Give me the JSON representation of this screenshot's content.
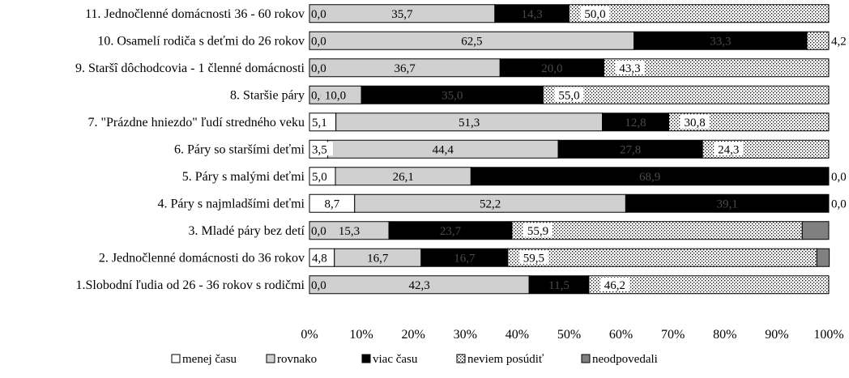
{
  "chart_data": {
    "type": "bar",
    "orientation": "horizontal",
    "stacked": "percent",
    "categories": [
      "11. Jednočlenné domácnosti 36 - 60 rokov",
      "10. Osamelí rodiča s deťmi do 26 rokov",
      "9. Staršî dôchodcovia - 1 členné domácnosti",
      "8. Staršie páry",
      "7. \"Prázdne hniezdo\" ľudí stredného veku",
      "6. Páry so staršími deťmi",
      "5. Páry s malými deťmi",
      "4.  Páry s najmladšími deťmi",
      "3. Mladé páry bez detí",
      "2. Jednočlenné domácnosti do 36 rokov",
      "1.Slobodní ľudia od 26 - 36 rokov s rodičmi"
    ],
    "series": [
      {
        "name": "menej času",
        "color": "#ffffff",
        "pattern": "none",
        "values": [
          0.0,
          0.0,
          0.0,
          0.0,
          5.1,
          3.5,
          5.0,
          8.7,
          0.0,
          4.8,
          0.0
        ],
        "labels": [
          "0,0",
          "0,0",
          "0,0",
          "0,0",
          "5,1",
          "3,5",
          "5,0",
          "8,7",
          "0,0",
          "4,8",
          "0,0"
        ]
      },
      {
        "name": "rovnako",
        "color": "#d0d0d0",
        "pattern": "none",
        "values": [
          35.7,
          62.5,
          36.7,
          10.0,
          51.3,
          44.4,
          26.1,
          52.2,
          15.3,
          16.7,
          42.3
        ],
        "labels": [
          "35,7",
          "62,5",
          "36,7",
          "10,0",
          "51,3",
          "44,4",
          "26,1",
          "52,2",
          "15,3",
          "16,7",
          "42,3"
        ]
      },
      {
        "name": "viac  času",
        "color": "#000000",
        "pattern": "none",
        "values": [
          14.3,
          33.3,
          20.0,
          35.0,
          12.8,
          27.8,
          68.9,
          39.1,
          23.7,
          16.7,
          11.5
        ],
        "labels": [
          "14,3",
          "33,3",
          "20,0",
          "35,0",
          "12,8",
          "27,8",
          "68,9",
          "39,1",
          "23,7",
          "16,7",
          "11,5"
        ]
      },
      {
        "name": "neviem posúdiť",
        "color": "#ffffff",
        "pattern": "dots",
        "values": [
          50.0,
          4.2,
          43.3,
          55.0,
          30.8,
          24.3,
          0.0,
          0.0,
          55.9,
          59.5,
          46.2
        ],
        "labels": [
          "50,0",
          "4,2",
          "43,3",
          "55,0",
          "30,8",
          "24,3",
          "0,0",
          "0,0",
          "55,9",
          "59,5",
          "46,2"
        ]
      },
      {
        "name": "neodpovedali",
        "color": "#808080",
        "pattern": "none",
        "values": [
          0,
          0,
          0,
          0,
          0,
          0,
          0,
          0,
          5.1,
          2.4,
          0
        ],
        "labels": [
          "",
          "",
          "",
          "",
          "",
          "",
          "",
          "",
          "",
          "",
          ""
        ]
      }
    ],
    "x_ticks": [
      "0%",
      "10%",
      "20%",
      "30%",
      "40%",
      "50%",
      "60%",
      "70%",
      "80%",
      "90%",
      "100%"
    ],
    "xlim": [
      0,
      100
    ],
    "legend_position": "bottom",
    "grid": false,
    "title": "",
    "xlabel": "",
    "ylabel": ""
  }
}
